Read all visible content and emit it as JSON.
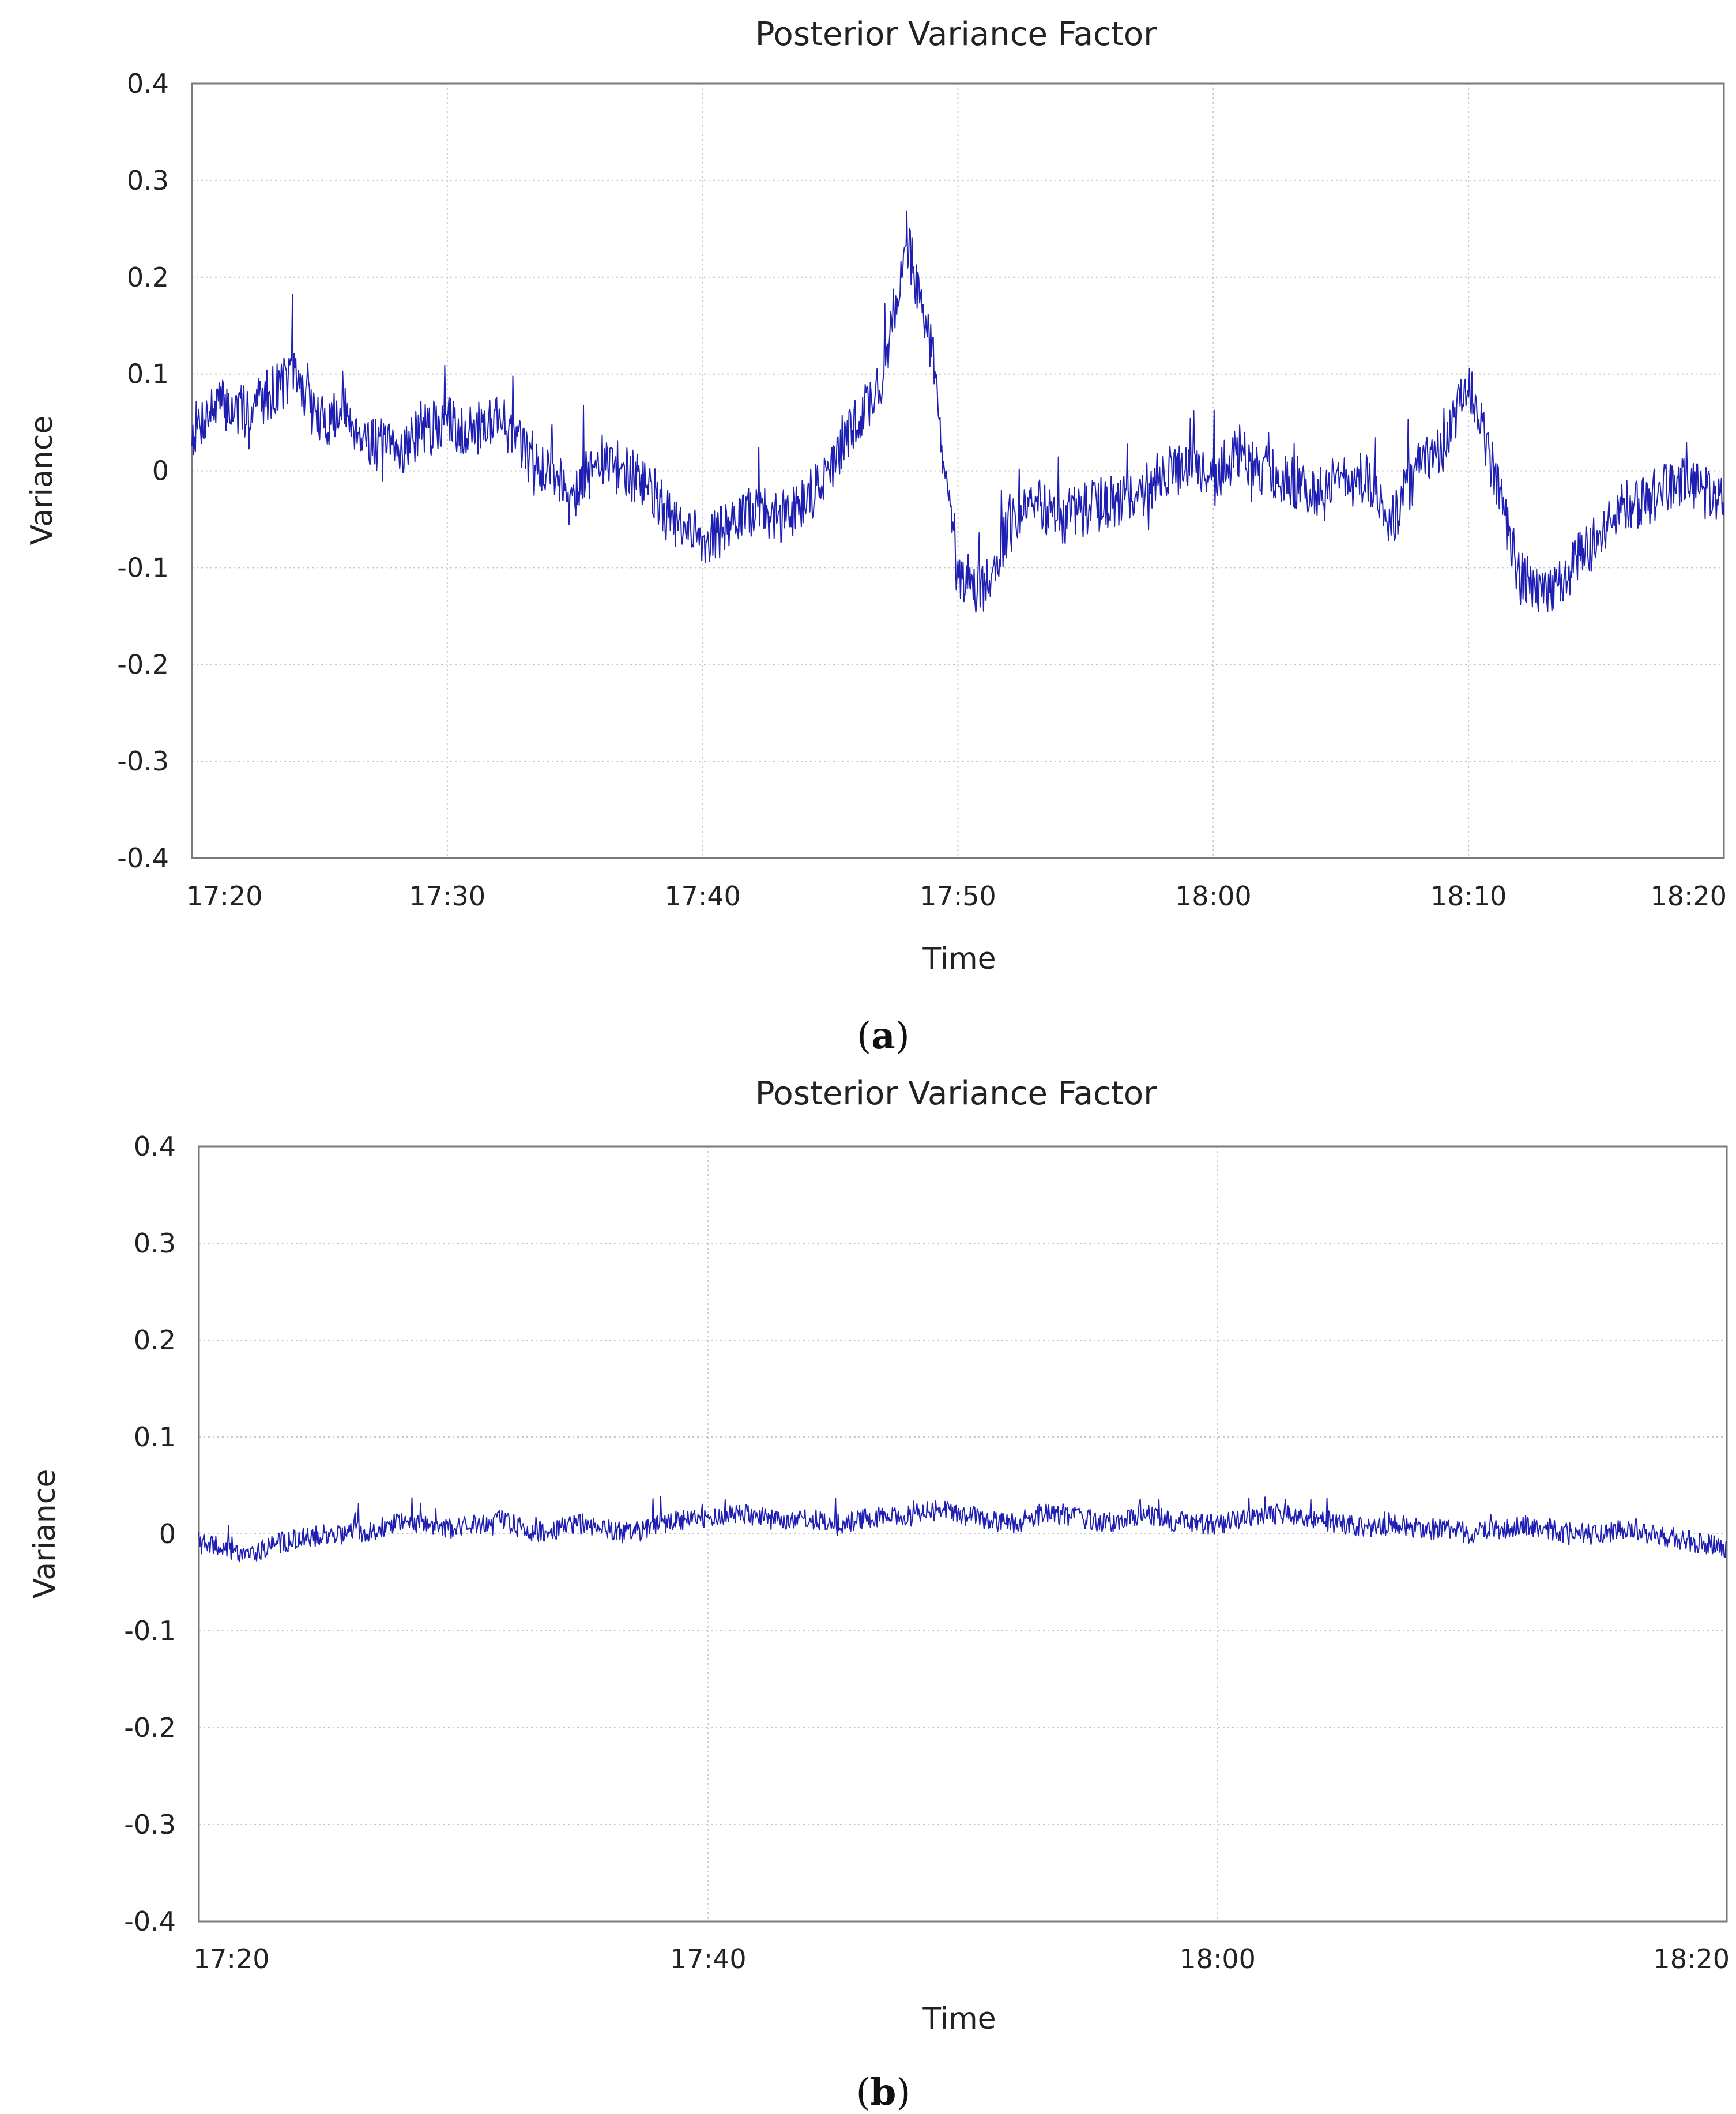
{
  "chart_data": [
    {
      "id": "a",
      "type": "line",
      "title": "Posterior Variance Factor",
      "xlabel": "Time",
      "ylabel": "Variance",
      "caption_letter": "a",
      "xlim_minutes": [
        0,
        60
      ],
      "ylim": [
        -0.4,
        0.4
      ],
      "yticks": [
        "0.4",
        "0.3",
        "0.2",
        "0.1",
        "0",
        "-0.1",
        "-0.2",
        "-0.3",
        "-0.4"
      ],
      "ytick_values": [
        0.4,
        0.3,
        0.2,
        0.1,
        0,
        -0.1,
        -0.2,
        -0.3,
        -0.4
      ],
      "xticks": [
        "17:20",
        "17:30",
        "17:40",
        "17:50",
        "18:00",
        "18:10",
        "18:20"
      ],
      "xtick_minutes": [
        0,
        10,
        20,
        30,
        40,
        50,
        60
      ],
      "grid": true,
      "color": "#1f1fb4",
      "series": [
        {
          "x": [
            "17:20",
            "17:21",
            "17:22",
            "17:23",
            "17:24",
            "17:25",
            "17:26",
            "17:27",
            "17:28",
            "17:29",
            "17:30",
            "17:31",
            "17:32",
            "17:33",
            "17:34",
            "17:35",
            "17:36",
            "17:37",
            "17:38",
            "17:39",
            "17:40",
            "17:41",
            "17:42",
            "17:43",
            "17:44",
            "17:45",
            "17:46",
            "17:47",
            "17:48",
            "17:49",
            "17:50",
            "17:51",
            "17:52",
            "17:53",
            "17:54",
            "17:55",
            "17:56",
            "17:57",
            "17:58",
            "17:59",
            "18:00",
            "18:01",
            "18:02",
            "18:03",
            "18:04",
            "18:05",
            "18:06",
            "18:07",
            "18:08",
            "18:09",
            "18:10",
            "18:11",
            "18:12",
            "18:13",
            "18:14",
            "18:15",
            "18:16",
            "18:17",
            "18:18",
            "18:19",
            "18:20"
          ],
          "values": [
            0.04,
            0.07,
            0.06,
            0.08,
            0.1,
            0.05,
            0.06,
            0.03,
            0.02,
            0.04,
            0.05,
            0.04,
            0.06,
            0.02,
            0.0,
            -0.02,
            0.01,
            0.0,
            -0.02,
            -0.06,
            -0.07,
            -0.06,
            -0.04,
            -0.05,
            -0.03,
            0.0,
            0.05,
            0.09,
            0.24,
            0.12,
            -0.12,
            -0.12,
            -0.06,
            -0.03,
            -0.05,
            -0.04,
            -0.03,
            -0.03,
            0.0,
            0.0,
            -0.01,
            0.02,
            0.0,
            -0.01,
            -0.02,
            -0.01,
            -0.01,
            -0.05,
            0.0,
            0.02,
            0.09,
            0.0,
            -0.11,
            -0.13,
            -0.1,
            -0.07,
            -0.04,
            -0.03,
            -0.01,
            -0.02,
            -0.03
          ]
        }
      ]
    },
    {
      "id": "b",
      "type": "line",
      "title": "Posterior Variance Factor",
      "xlabel": "Time",
      "ylabel": "Variance",
      "caption_letter": "b",
      "xlim_minutes": [
        0,
        60
      ],
      "ylim": [
        -0.4,
        0.4
      ],
      "yticks": [
        "0.4",
        "0.3",
        "0.2",
        "0.1",
        "0",
        "-0.1",
        "-0.2",
        "-0.3",
        "-0.4"
      ],
      "ytick_values": [
        0.4,
        0.3,
        0.2,
        0.1,
        0,
        -0.1,
        -0.2,
        -0.3,
        -0.4
      ],
      "xticks": [
        "17:20",
        "17:40",
        "18:00",
        "18:20"
      ],
      "xtick_minutes": [
        0,
        20,
        40,
        60
      ],
      "grid": true,
      "color": "#1f1fb4",
      "series": [
        {
          "x": [
            "17:20",
            "17:21",
            "17:22",
            "17:23",
            "17:24",
            "17:25",
            "17:26",
            "17:27",
            "17:28",
            "17:29",
            "17:30",
            "17:31",
            "17:32",
            "17:33",
            "17:34",
            "17:35",
            "17:36",
            "17:37",
            "17:38",
            "17:39",
            "17:40",
            "17:41",
            "17:42",
            "17:43",
            "17:44",
            "17:45",
            "17:46",
            "17:47",
            "17:48",
            "17:49",
            "17:50",
            "17:51",
            "17:52",
            "17:53",
            "17:54",
            "17:55",
            "17:56",
            "17:57",
            "17:58",
            "17:59",
            "18:00",
            "18:01",
            "18:02",
            "18:03",
            "18:04",
            "18:05",
            "18:06",
            "18:07",
            "18:08",
            "18:09",
            "18:10",
            "18:11",
            "18:12",
            "18:13",
            "18:14",
            "18:15",
            "18:16",
            "18:17",
            "18:18",
            "18:19",
            "18:20"
          ],
          "values": [
            -0.01,
            -0.015,
            -0.02,
            -0.01,
            -0.005,
            0.0,
            0.0,
            0.005,
            0.015,
            0.01,
            0.005,
            0.01,
            0.015,
            0.0,
            0.005,
            0.01,
            0.005,
            0.0,
            0.01,
            0.015,
            0.015,
            0.02,
            0.02,
            0.01,
            0.015,
            0.01,
            0.015,
            0.02,
            0.02,
            0.025,
            0.02,
            0.015,
            0.01,
            0.02,
            0.02,
            0.015,
            0.01,
            0.02,
            0.015,
            0.01,
            0.01,
            0.015,
            0.02,
            0.02,
            0.015,
            0.01,
            0.005,
            0.01,
            0.005,
            0.005,
            0.0,
            0.005,
            0.01,
            0.005,
            0.0,
            0.0,
            0.005,
            0.0,
            -0.005,
            -0.01,
            -0.015
          ]
        }
      ]
    }
  ]
}
